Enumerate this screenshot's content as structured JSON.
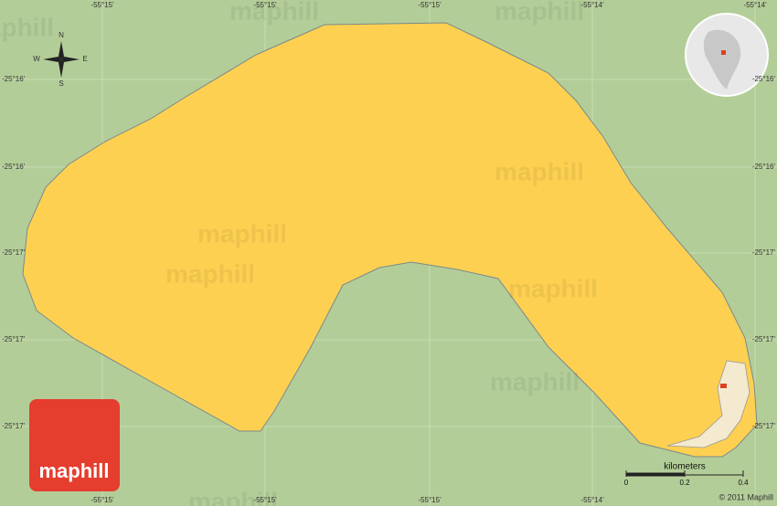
{
  "map": {
    "longitude_labels_top": [
      "-55°15'",
      "-55°15'",
      "-55°15'",
      "-55°14'",
      "-55°14'"
    ],
    "longitude_labels_bottom": [
      "-55°15'",
      "-55°15'",
      "-55°15'",
      "-55°14'"
    ],
    "latitude_labels_left": [
      "-25°16'",
      "-25°16'",
      "-25°17'",
      "-25°17'",
      "-25°17'"
    ],
    "latitude_labels_right": [
      "-25°16'",
      "-25°16'",
      "-25°17'",
      "-25°17'",
      "-25°17'"
    ],
    "compass": {
      "north": "N",
      "south": "S",
      "east": "E",
      "west": "W"
    },
    "scale": {
      "title": "kilometers",
      "ticks": [
        "0",
        "0.2",
        "0.4"
      ]
    },
    "copyright": "© 2011 Maphill",
    "logo": "maphill",
    "watermarks": [
      "maphill",
      "maphill",
      "maphill",
      "maphill",
      "maphill",
      "maphill",
      "maphill",
      "maphill",
      "maphill"
    ]
  }
}
